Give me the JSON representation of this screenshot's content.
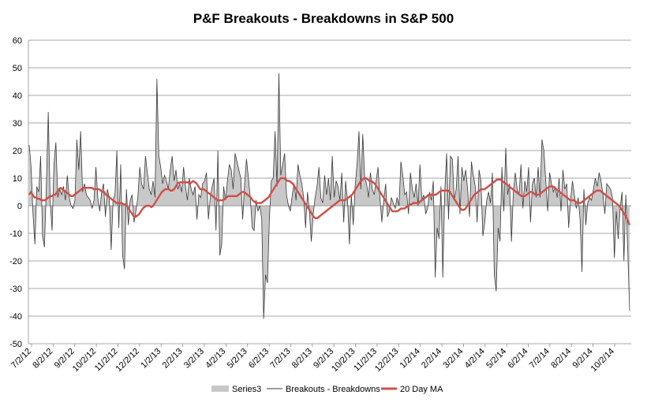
{
  "chart_data": {
    "type": "line",
    "title": "P&F Breakouts - Breakdowns in S&P 500",
    "xlabel": "",
    "ylabel": "",
    "ylim": [
      -50,
      60
    ],
    "yticks": [
      60,
      50,
      40,
      30,
      20,
      10,
      0,
      -10,
      -20,
      -30,
      -40,
      -50
    ],
    "x_tick_labels": [
      "7/2/12",
      "8/2/12",
      "9/2/12",
      "10/2/12",
      "11/2/12",
      "12/2/12",
      "1/2/13",
      "2/2/13",
      "3/2/13",
      "4/2/13",
      "5/2/13",
      "6/2/13",
      "7/2/13",
      "8/2/13",
      "9/2/13",
      "10/2/13",
      "11/2/13",
      "12/2/13",
      "1/2/14",
      "2/2/14",
      "3/2/14",
      "4/2/14",
      "5/2/14",
      "6/2/14",
      "7/2/14",
      "8/2/14",
      "9/2/14",
      "10/2/14"
    ],
    "grid": true,
    "legend_position": "bottom",
    "series": [
      {
        "name": "Series3",
        "style": "area",
        "color": "#c8c8c8",
        "values": [
          22,
          14,
          -3,
          -14,
          7,
          5,
          18,
          -11,
          -15,
          7,
          34,
          2,
          -9,
          15,
          23,
          3,
          6,
          4,
          7,
          2,
          11,
          3,
          0,
          -1,
          2,
          24,
          13,
          27,
          5,
          8,
          4,
          3,
          2,
          -1,
          2,
          14,
          3,
          -2,
          5,
          8,
          -4,
          6,
          3,
          -16,
          2,
          4,
          20,
          -8,
          15,
          -18,
          -23,
          6,
          -7,
          2,
          4,
          -6,
          -2,
          3,
          14,
          8,
          6,
          18,
          12,
          6,
          4,
          9,
          3,
          46,
          18,
          14,
          8,
          11,
          9,
          6,
          13,
          18,
          9,
          13,
          6,
          8,
          5,
          14,
          7,
          2,
          10,
          6,
          4,
          7,
          -5,
          4,
          3,
          8,
          9,
          12,
          -5,
          3,
          7,
          10,
          -9,
          20,
          -18,
          -14,
          7,
          2,
          9,
          15,
          13,
          6,
          19,
          16,
          13,
          10,
          -5,
          8,
          17,
          10,
          3,
          -8,
          -9,
          2,
          -2,
          0,
          -5,
          -41,
          -25,
          -28,
          -5,
          9,
          10,
          27,
          7,
          48,
          11,
          15,
          19,
          4,
          0,
          -2,
          4,
          8,
          2,
          15,
          11,
          8,
          3,
          -8,
          5,
          -2,
          -13,
          -3,
          3,
          7,
          14,
          3,
          1,
          11,
          4,
          10,
          2,
          18,
          3,
          9,
          7,
          2,
          12,
          -6,
          9,
          2,
          -14,
          4,
          -7,
          7,
          15,
          27,
          6,
          26,
          10,
          8,
          3,
          12,
          6,
          4,
          9,
          14,
          3,
          -6,
          2,
          8,
          -4,
          -2,
          3,
          1,
          -1,
          3,
          0,
          16,
          11,
          4,
          5,
          -3,
          12,
          6,
          3,
          8,
          0,
          15,
          2,
          4,
          -3,
          -1,
          5,
          2,
          9,
          -26,
          -8,
          -12,
          7,
          -26,
          5,
          19,
          -5,
          18,
          17,
          2,
          6,
          18,
          -3,
          14,
          9,
          13,
          6,
          -4,
          16,
          11,
          7,
          -6,
          13,
          9,
          -11,
          -6,
          2,
          5,
          1,
          12,
          -25,
          -31,
          -8,
          -13,
          14,
          -2,
          21,
          4,
          8,
          -13,
          5,
          12,
          6,
          4,
          15,
          -1,
          9,
          5,
          14,
          -6,
          8,
          10,
          3,
          14,
          3,
          24,
          20,
          9,
          -2,
          12,
          8,
          5,
          7,
          3,
          10,
          -2,
          13,
          6,
          8,
          -8,
          2,
          9,
          4,
          -1,
          3,
          -5,
          -24,
          6,
          -7,
          1,
          3,
          2,
          6,
          10,
          7,
          12,
          9,
          4,
          -3,
          8,
          7,
          6,
          3,
          -19,
          -2,
          -12,
          -1,
          5,
          -20,
          4,
          -16,
          -38
        ]
      },
      {
        "name": "Breakouts - Breakdowns",
        "style": "line",
        "color": "#3a3a3a",
        "values": [
          22,
          14,
          -3,
          -14,
          7,
          5,
          18,
          -11,
          -15,
          7,
          34,
          2,
          -9,
          15,
          23,
          3,
          6,
          4,
          7,
          2,
          11,
          3,
          0,
          -1,
          2,
          24,
          13,
          27,
          5,
          8,
          4,
          3,
          2,
          -1,
          2,
          14,
          3,
          -2,
          5,
          8,
          -4,
          6,
          3,
          -16,
          2,
          4,
          20,
          -8,
          15,
          -18,
          -23,
          6,
          -7,
          2,
          4,
          -6,
          -2,
          3,
          14,
          8,
          6,
          18,
          12,
          6,
          4,
          9,
          3,
          46,
          18,
          14,
          8,
          11,
          9,
          6,
          13,
          18,
          9,
          13,
          6,
          8,
          5,
          14,
          7,
          2,
          10,
          6,
          4,
          7,
          -5,
          4,
          3,
          8,
          9,
          12,
          -5,
          3,
          7,
          10,
          -9,
          20,
          -18,
          -14,
          7,
          2,
          9,
          15,
          13,
          6,
          19,
          16,
          13,
          10,
          -5,
          8,
          17,
          10,
          3,
          -8,
          -9,
          2,
          -2,
          0,
          -5,
          -41,
          -25,
          -28,
          -5,
          9,
          10,
          27,
          7,
          48,
          11,
          15,
          19,
          4,
          0,
          -2,
          4,
          8,
          2,
          15,
          11,
          8,
          3,
          -8,
          5,
          -2,
          -13,
          -3,
          3,
          7,
          14,
          3,
          1,
          11,
          4,
          10,
          2,
          18,
          3,
          9,
          7,
          2,
          12,
          -6,
          9,
          2,
          -14,
          4,
          -7,
          7,
          15,
          27,
          6,
          26,
          10,
          8,
          3,
          12,
          6,
          4,
          9,
          14,
          3,
          -6,
          2,
          8,
          -4,
          -2,
          3,
          1,
          -1,
          3,
          0,
          16,
          11,
          4,
          5,
          -3,
          12,
          6,
          3,
          8,
          0,
          15,
          2,
          4,
          -3,
          -1,
          5,
          2,
          9,
          -26,
          -8,
          -12,
          7,
          -26,
          5,
          19,
          -5,
          18,
          17,
          2,
          6,
          18,
          -3,
          14,
          9,
          13,
          6,
          -4,
          16,
          11,
          7,
          -6,
          13,
          9,
          -11,
          -6,
          2,
          5,
          1,
          12,
          -25,
          -31,
          -8,
          -13,
          14,
          -2,
          21,
          4,
          8,
          -13,
          5,
          12,
          6,
          4,
          15,
          -1,
          9,
          5,
          14,
          -6,
          8,
          10,
          3,
          14,
          3,
          24,
          20,
          9,
          -2,
          12,
          8,
          5,
          7,
          3,
          10,
          -2,
          13,
          6,
          8,
          -8,
          2,
          9,
          4,
          -1,
          3,
          -5,
          -24,
          6,
          -7,
          1,
          3,
          2,
          6,
          10,
          7,
          12,
          9,
          4,
          -3,
          8,
          7,
          6,
          3,
          -19,
          -2,
          -12,
          -1,
          5,
          -20,
          4,
          -16,
          -38
        ]
      },
      {
        "name": "20 Day MA",
        "style": "line",
        "color": "#d0504b",
        "values": [
          4,
          5,
          4,
          3,
          3,
          2.5,
          2.5,
          2,
          2,
          2,
          2.5,
          3,
          3.5,
          3.5,
          4,
          4,
          5,
          6,
          6.5,
          6,
          5.5,
          5,
          4.5,
          4,
          3.5,
          3.5,
          4,
          4.5,
          5,
          5.5,
          6,
          6.5,
          6.5,
          6.5,
          6.5,
          6.5,
          6.5,
          6,
          6,
          6,
          6,
          5.5,
          5,
          5,
          4,
          3.5,
          3,
          2.5,
          2,
          1.5,
          1,
          1,
          1,
          1,
          0.5,
          0.5,
          0,
          -1,
          -2,
          -3,
          -4,
          -4,
          -3.5,
          -3,
          -2,
          -1,
          -0.5,
          0,
          0,
          0,
          -0.5,
          0,
          1,
          2,
          3,
          4,
          5,
          5.5,
          6,
          6,
          6,
          5.5,
          5.5,
          6,
          7,
          8,
          8.5,
          8.5,
          8.5,
          8.5,
          8.5,
          8.5,
          8,
          8.5,
          9,
          8.5,
          8,
          7,
          6,
          6,
          6,
          5.5,
          5,
          4.5,
          4,
          3.5,
          3,
          2.5,
          2,
          2,
          2,
          2,
          2.5,
          3,
          3.5,
          3.5,
          3.5,
          3.5,
          3.5,
          3.5,
          4,
          4.5,
          5,
          5,
          4.5,
          4,
          3.5,
          3,
          2,
          1.5,
          1,
          1,
          1,
          1,
          1.5,
          2,
          2.5,
          3,
          4,
          5,
          6,
          7,
          8,
          9,
          10,
          10,
          10,
          9.5,
          9,
          9,
          8.5,
          8,
          7,
          6,
          5,
          4,
          3,
          2,
          1,
          0,
          -1,
          -2,
          -3,
          -4,
          -4.5,
          -4.5,
          -4,
          -3.5,
          -3,
          -2.5,
          -2,
          -1.5,
          -1,
          -0.5,
          0,
          0.5,
          1,
          1.5,
          2,
          2,
          2,
          2,
          2.5,
          3,
          3.5,
          4,
          5,
          6,
          7,
          8,
          9,
          9.5,
          10,
          10,
          9.5,
          9,
          9,
          8.5,
          8,
          7,
          6,
          5,
          4,
          3,
          2,
          1,
          0,
          -1,
          -2,
          -2,
          -2,
          -2,
          -1.5,
          -1,
          -1,
          -1,
          -0.5,
          0,
          0.5,
          0.5,
          1,
          1,
          1,
          1,
          1.5,
          2,
          2.5,
          3,
          3.5,
          4,
          4,
          4,
          4,
          4,
          4.5,
          5,
          5.5,
          5.5,
          5.5,
          5.5,
          5.5,
          5,
          4,
          3,
          2,
          1,
          0,
          -1,
          -1.5,
          -1.5,
          -1,
          0,
          1,
          2,
          3,
          4,
          4.5,
          5,
          5.5,
          6,
          6,
          6,
          6.5,
          7,
          7.5,
          8,
          8.5,
          9,
          9.5,
          9.5,
          9.5,
          9,
          8.5,
          8,
          7.5,
          7,
          6.5,
          6,
          5.5,
          5,
          4.5,
          4,
          3.5,
          3.5,
          3.5,
          4,
          4.5,
          5,
          5,
          4.5,
          4,
          4,
          4,
          4.5,
          5,
          5.5,
          6,
          6.5,
          7,
          7,
          7,
          6.5,
          6,
          5.5,
          5,
          4.5,
          4,
          3.5,
          3,
          2.5,
          2,
          2,
          2,
          1.5,
          1,
          1,
          1,
          1.5,
          2,
          2.5,
          3,
          3.5,
          4,
          4.5,
          5,
          5.5,
          5.5,
          5.5,
          5,
          4.5,
          4,
          3.5,
          3,
          2.5,
          2,
          1.5,
          1,
          0.5,
          0,
          -1,
          -2,
          -3,
          -4,
          -5.5,
          -7
        ]
      }
    ]
  }
}
